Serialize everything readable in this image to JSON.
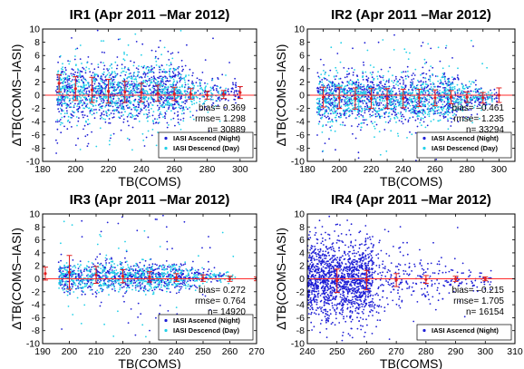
{
  "chart_data": [
    {
      "type": "scatter",
      "title": "IR1 (Apr 2011 –Mar 2012)",
      "xlabel": "TB(COMS)",
      "ylabel": "ΔTB(COMS–IASI)",
      "xlim": [
        180,
        310
      ],
      "ylim": [
        -10,
        10
      ],
      "xticks": [
        180,
        200,
        220,
        240,
        260,
        280,
        300
      ],
      "yticks": [
        -10,
        -8,
        -6,
        -4,
        -2,
        0,
        2,
        4,
        6,
        8,
        10
      ],
      "stats": [
        "bias= 0.369",
        "rmse= 1.298",
        "n= 30889"
      ],
      "legend": [
        "IASI Ascencd (Night)",
        "IASI Descencd (Day)"
      ],
      "legend_position": "bottom-right",
      "series": [
        {
          "name": "IASI Ascencd (Night)",
          "color": "#1f1fd6",
          "x_range": [
            188,
            300
          ],
          "center": 0.4,
          "spread": 2.2,
          "taper_start": 262,
          "count": 1100
        },
        {
          "name": "IASI Descencd (Day)",
          "color": "#22d0e8",
          "x_range": [
            188,
            292
          ],
          "center": 0.4,
          "spread": 2.0,
          "taper_start": 262,
          "count": 900
        }
      ],
      "binned_means": {
        "x": [
          190,
          200,
          210,
          220,
          230,
          240,
          250,
          260,
          270,
          280,
          290,
          300
        ],
        "y": [
          1.8,
          1.0,
          0.8,
          0.6,
          0.5,
          0.4,
          0.3,
          0.2,
          0.2,
          0.0,
          0.1,
          0.4
        ],
        "err": [
          1.3,
          1.8,
          1.9,
          1.8,
          1.6,
          1.4,
          1.2,
          1.0,
          0.8,
          0.6,
          0.6,
          0.9
        ]
      },
      "zero_line": true
    },
    {
      "type": "scatter",
      "title": "IR2 (Apr 2011 –Mar 2012)",
      "xlabel": "TB(COMS)",
      "ylabel": "ΔTB(COMS–IASI)",
      "xlim": [
        180,
        310
      ],
      "ylim": [
        -10,
        10
      ],
      "xticks": [
        180,
        190,
        200,
        210,
        220,
        230,
        240,
        250,
        260,
        270,
        280,
        290,
        300
      ],
      "xticklabels": [
        "180",
        "",
        "200",
        "",
        "220",
        "",
        "240",
        "",
        "260",
        "",
        "280",
        "",
        "300"
      ],
      "yticks": [
        -10,
        -8,
        -6,
        -4,
        -2,
        0,
        2,
        4,
        6,
        8,
        10
      ],
      "stats": [
        "bias= –0.461",
        "rmse= 1.235",
        "n= 33294"
      ],
      "legend": [
        "IASI Ascencd (Night)",
        "IASI Descencd (Day)"
      ],
      "legend_position": "bottom-right",
      "series": [
        {
          "name": "IASI Ascencd (Night)",
          "color": "#1f1fd6",
          "x_range": [
            186,
            300
          ],
          "center": -0.4,
          "spread": 1.9,
          "taper_start": 268,
          "count": 1100
        },
        {
          "name": "IASI Descencd (Day)",
          "color": "#22d0e8",
          "x_range": [
            186,
            296
          ],
          "center": -0.4,
          "spread": 1.8,
          "taper_start": 268,
          "count": 1000
        }
      ],
      "binned_means": {
        "x": [
          190,
          200,
          210,
          220,
          230,
          240,
          250,
          260,
          270,
          280,
          290,
          300
        ],
        "y": [
          -0.3,
          -0.4,
          -0.5,
          -0.5,
          -0.5,
          -0.5,
          -0.4,
          -0.4,
          -0.3,
          -0.3,
          -0.4,
          0.0
        ],
        "err": [
          1.5,
          1.6,
          1.6,
          1.5,
          1.5,
          1.4,
          1.3,
          1.2,
          1.0,
          0.8,
          0.8,
          1.1
        ]
      },
      "zero_line": true
    },
    {
      "type": "scatter",
      "title": "IR3 (Apr 2011 –Mar 2012)",
      "xlabel": "TB(COMS)",
      "ylabel": "ΔTB(COMS–IASI)",
      "xlim": [
        190,
        270
      ],
      "ylim": [
        -10,
        10
      ],
      "xticks": [
        190,
        200,
        210,
        220,
        230,
        240,
        250,
        260,
        270
      ],
      "yticks": [
        -10,
        -8,
        -6,
        -4,
        -2,
        0,
        2,
        4,
        6,
        8,
        10
      ],
      "stats": [
        "bias= 0.272",
        "rmse= 0.764",
        "n= 14920"
      ],
      "legend": [
        "IASI Ascencd (Night)",
        "IASI Descencd (Day)"
      ],
      "legend_position": "bottom-right",
      "series": [
        {
          "name": "IASI Ascencd (Night)",
          "color": "#1f1fd6",
          "x_range": [
            196,
            258
          ],
          "center": 0.3,
          "spread": 1.2,
          "taper_start": 240,
          "count": 750
        },
        {
          "name": "IASI Descencd (Day)",
          "color": "#22d0e8",
          "x_range": [
            196,
            262
          ],
          "center": 0.3,
          "spread": 1.1,
          "taper_start": 240,
          "count": 650
        }
      ],
      "binned_means": {
        "x": [
          191,
          200,
          210,
          220,
          230,
          240,
          250,
          260,
          270
        ],
        "y": [
          0.8,
          1.0,
          0.6,
          0.4,
          0.3,
          0.2,
          0.1,
          0.0,
          0.0
        ],
        "err": [
          1.0,
          2.6,
          1.3,
          1.0,
          0.8,
          0.6,
          0.5,
          0.4,
          0.3
        ]
      },
      "zero_line": true
    },
    {
      "type": "scatter",
      "title": "IR4 (Apr 2011 –Mar 2012)",
      "xlabel": "TB(COMS)",
      "ylabel": "ΔTB(COMS–IASI)",
      "xlim": [
        240,
        310
      ],
      "ylim": [
        -10,
        10
      ],
      "xticks": [
        240,
        250,
        260,
        270,
        280,
        290,
        300,
        310
      ],
      "yticks": [
        -10,
        -8,
        -6,
        -4,
        -2,
        0,
        2,
        4,
        6,
        8,
        10
      ],
      "stats": [
        "bias= –0.215",
        "rmse= 1.705",
        "n= 16154"
      ],
      "legend": [
        "IASI Ascencd (Night)"
      ],
      "legend_position": "bottom-right",
      "series": [
        {
          "name": "IASI Ascencd (Night)",
          "color": "#1f1fd6",
          "x_range": [
            240,
            302
          ],
          "center": -0.2,
          "spread": 3.0,
          "taper_start": 262,
          "count": 1700
        }
      ],
      "binned_means": {
        "x": [
          250,
          260,
          270,
          280,
          290,
          300
        ],
        "y": [
          -0.3,
          -0.2,
          -0.2,
          -0.1,
          0.0,
          0.0
        ],
        "err": [
          1.8,
          1.5,
          1.0,
          0.6,
          0.4,
          0.3
        ]
      },
      "zero_line": true
    }
  ]
}
